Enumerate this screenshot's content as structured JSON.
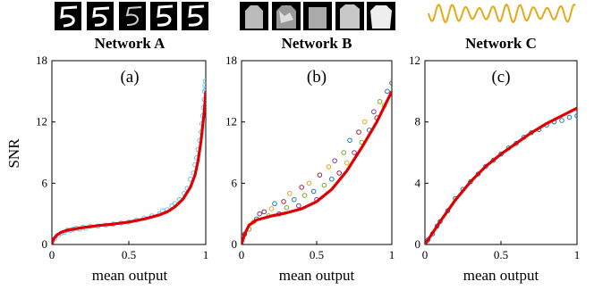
{
  "figure": {
    "ylabel": "SNR",
    "colors": {
      "fit": "#e00000",
      "networkA_points": "#5ec4ef",
      "networkC_points": "#1f77b4",
      "networkC_wave": "#e6a817"
    }
  },
  "chart_data": [
    {
      "type": "scatter",
      "panel_label": "(a)",
      "title": "Network A",
      "xlabel": "mean output",
      "ylabel": "SNR",
      "xlim": [
        0,
        1
      ],
      "ylim": [
        0,
        18
      ],
      "xticks": [
        "0",
        "0.5",
        "1"
      ],
      "yticks": [
        "0",
        "6",
        "12",
        "18"
      ],
      "header_images": "five handwritten digit '5' thumbnails (white on black)",
      "series": [
        {
          "style": "points",
          "color": "#5ec4ef",
          "points": [
            [
              0.02,
              0.6
            ],
            [
              0.04,
              0.9
            ],
            [
              0.06,
              1.1
            ],
            [
              0.08,
              1.2
            ],
            [
              0.1,
              1.4
            ],
            [
              0.12,
              1.4
            ],
            [
              0.14,
              1.5
            ],
            [
              0.16,
              1.6
            ],
            [
              0.18,
              1.5
            ],
            [
              0.2,
              1.7
            ],
            [
              0.22,
              1.6
            ],
            [
              0.25,
              1.8
            ],
            [
              0.3,
              1.8
            ],
            [
              0.35,
              1.9
            ],
            [
              0.4,
              2.0
            ],
            [
              0.45,
              2.1
            ],
            [
              0.5,
              2.2
            ],
            [
              0.55,
              2.4
            ],
            [
              0.6,
              2.6
            ],
            [
              0.65,
              2.8
            ],
            [
              0.7,
              3.0
            ],
            [
              0.72,
              3.3
            ],
            [
              0.75,
              3.4
            ],
            [
              0.78,
              3.8
            ],
            [
              0.8,
              4.0
            ],
            [
              0.83,
              4.4
            ],
            [
              0.86,
              5.0
            ],
            [
              0.88,
              5.5
            ],
            [
              0.9,
              6.4
            ],
            [
              0.92,
              7.0
            ],
            [
              0.93,
              7.8
            ],
            [
              0.94,
              8.5
            ],
            [
              0.95,
              9.3
            ],
            [
              0.96,
              10.2
            ],
            [
              0.97,
              11.0
            ],
            [
              0.975,
              11.8
            ],
            [
              0.98,
              12.6
            ],
            [
              0.985,
              13.4
            ],
            [
              0.99,
              14.2
            ],
            [
              0.992,
              15.0
            ],
            [
              0.995,
              15.6
            ],
            [
              0.998,
              16.0
            ],
            [
              1.0,
              15.2
            ]
          ]
        },
        {
          "style": "fit",
          "color": "#e00000",
          "points": [
            [
              0,
              0
            ],
            [
              0.01,
              0.5
            ],
            [
              0.03,
              0.9
            ],
            [
              0.06,
              1.2
            ],
            [
              0.1,
              1.4
            ],
            [
              0.2,
              1.65
            ],
            [
              0.3,
              1.85
            ],
            [
              0.4,
              2.0
            ],
            [
              0.5,
              2.2
            ],
            [
              0.6,
              2.5
            ],
            [
              0.7,
              2.9
            ],
            [
              0.75,
              3.2
            ],
            [
              0.8,
              3.7
            ],
            [
              0.85,
              4.4
            ],
            [
              0.9,
              5.6
            ],
            [
              0.93,
              6.8
            ],
            [
              0.95,
              8.2
            ],
            [
              0.97,
              10.2
            ],
            [
              0.99,
              13.0
            ],
            [
              1.0,
              15.0
            ]
          ]
        }
      ]
    },
    {
      "type": "scatter",
      "panel_label": "(b)",
      "title": "Network B",
      "xlabel": "mean output",
      "ylabel": "",
      "xlim": [
        0,
        1
      ],
      "ylim": [
        0,
        18
      ],
      "xticks": [
        "0",
        "0.5",
        "1"
      ],
      "yticks": [
        "0",
        "6",
        "12",
        "18"
      ],
      "header_images": "five clothing item thumbnails (grayscale)",
      "series": [
        {
          "style": "points",
          "color_cycle": [
            "#a01c3c",
            "#7aa82a",
            "#e6a817",
            "#1f77b4",
            "#7a3c8c"
          ],
          "points": [
            [
              0.02,
              1.0
            ],
            [
              0.05,
              1.5
            ],
            [
              0.08,
              2.2
            ],
            [
              0.1,
              2.5
            ],
            [
              0.12,
              3.0
            ],
            [
              0.15,
              3.2
            ],
            [
              0.18,
              2.8
            ],
            [
              0.2,
              3.5
            ],
            [
              0.22,
              4.0
            ],
            [
              0.25,
              3.0
            ],
            [
              0.28,
              4.2
            ],
            [
              0.3,
              3.6
            ],
            [
              0.32,
              5.0
            ],
            [
              0.35,
              4.4
            ],
            [
              0.38,
              3.8
            ],
            [
              0.4,
              5.6
            ],
            [
              0.42,
              4.8
            ],
            [
              0.45,
              6.0
            ],
            [
              0.48,
              5.2
            ],
            [
              0.5,
              4.4
            ],
            [
              0.52,
              6.8
            ],
            [
              0.55,
              5.8
            ],
            [
              0.58,
              7.6
            ],
            [
              0.6,
              6.4
            ],
            [
              0.62,
              8.2
            ],
            [
              0.65,
              7.0
            ],
            [
              0.68,
              9.0
            ],
            [
              0.7,
              8.0
            ],
            [
              0.72,
              10.2
            ],
            [
              0.75,
              9.0
            ],
            [
              0.78,
              11.0
            ],
            [
              0.8,
              10.0
            ],
            [
              0.82,
              12.0
            ],
            [
              0.85,
              11.2
            ],
            [
              0.88,
              13.0
            ],
            [
              0.9,
              12.4
            ],
            [
              0.92,
              14.0
            ],
            [
              0.95,
              13.6
            ],
            [
              0.97,
              15.0
            ],
            [
              1.0,
              15.8
            ]
          ]
        },
        {
          "style": "fit",
          "color": "#e00000",
          "points": [
            [
              0,
              0
            ],
            [
              0.02,
              1.0
            ],
            [
              0.05,
              1.9
            ],
            [
              0.1,
              2.4
            ],
            [
              0.2,
              2.8
            ],
            [
              0.3,
              3.1
            ],
            [
              0.4,
              3.5
            ],
            [
              0.5,
              4.2
            ],
            [
              0.6,
              5.4
            ],
            [
              0.7,
              7.2
            ],
            [
              0.8,
              9.5
            ],
            [
              0.9,
              12.0
            ],
            [
              1.0,
              15.0
            ]
          ]
        }
      ]
    },
    {
      "type": "scatter",
      "panel_label": "(c)",
      "title": "Network C",
      "xlabel": "mean output",
      "ylabel": "",
      "xlim": [
        0,
        1
      ],
      "ylim": [
        0,
        12
      ],
      "xticks": [
        "0",
        "0.5",
        "1"
      ],
      "yticks": [
        "0",
        "4",
        "8",
        "12"
      ],
      "header_images": "oscillating orange waveform",
      "series": [
        {
          "style": "points",
          "color": "#1f77b4",
          "points": [
            [
              0.02,
              0.3
            ],
            [
              0.05,
              0.7
            ],
            [
              0.08,
              1.2
            ],
            [
              0.1,
              1.5
            ],
            [
              0.15,
              2.2
            ],
            [
              0.2,
              3.0
            ],
            [
              0.25,
              3.6
            ],
            [
              0.3,
              4.1
            ],
            [
              0.35,
              4.6
            ],
            [
              0.4,
              5.1
            ],
            [
              0.45,
              5.5
            ],
            [
              0.5,
              5.9
            ],
            [
              0.55,
              6.3
            ],
            [
              0.6,
              6.6
            ],
            [
              0.65,
              7.0
            ],
            [
              0.7,
              7.3
            ],
            [
              0.75,
              7.5
            ],
            [
              0.8,
              7.8
            ],
            [
              0.85,
              8.0
            ],
            [
              0.9,
              8.1
            ],
            [
              0.95,
              8.3
            ],
            [
              1.0,
              8.4
            ]
          ]
        },
        {
          "style": "fit",
          "color": "#e00000",
          "points": [
            [
              0,
              0
            ],
            [
              0.1,
              1.5
            ],
            [
              0.2,
              2.9
            ],
            [
              0.3,
              4.1
            ],
            [
              0.4,
              5.1
            ],
            [
              0.5,
              5.9
            ],
            [
              0.6,
              6.6
            ],
            [
              0.7,
              7.3
            ],
            [
              0.8,
              7.9
            ],
            [
              0.9,
              8.4
            ],
            [
              1.0,
              8.9
            ]
          ]
        }
      ]
    }
  ]
}
